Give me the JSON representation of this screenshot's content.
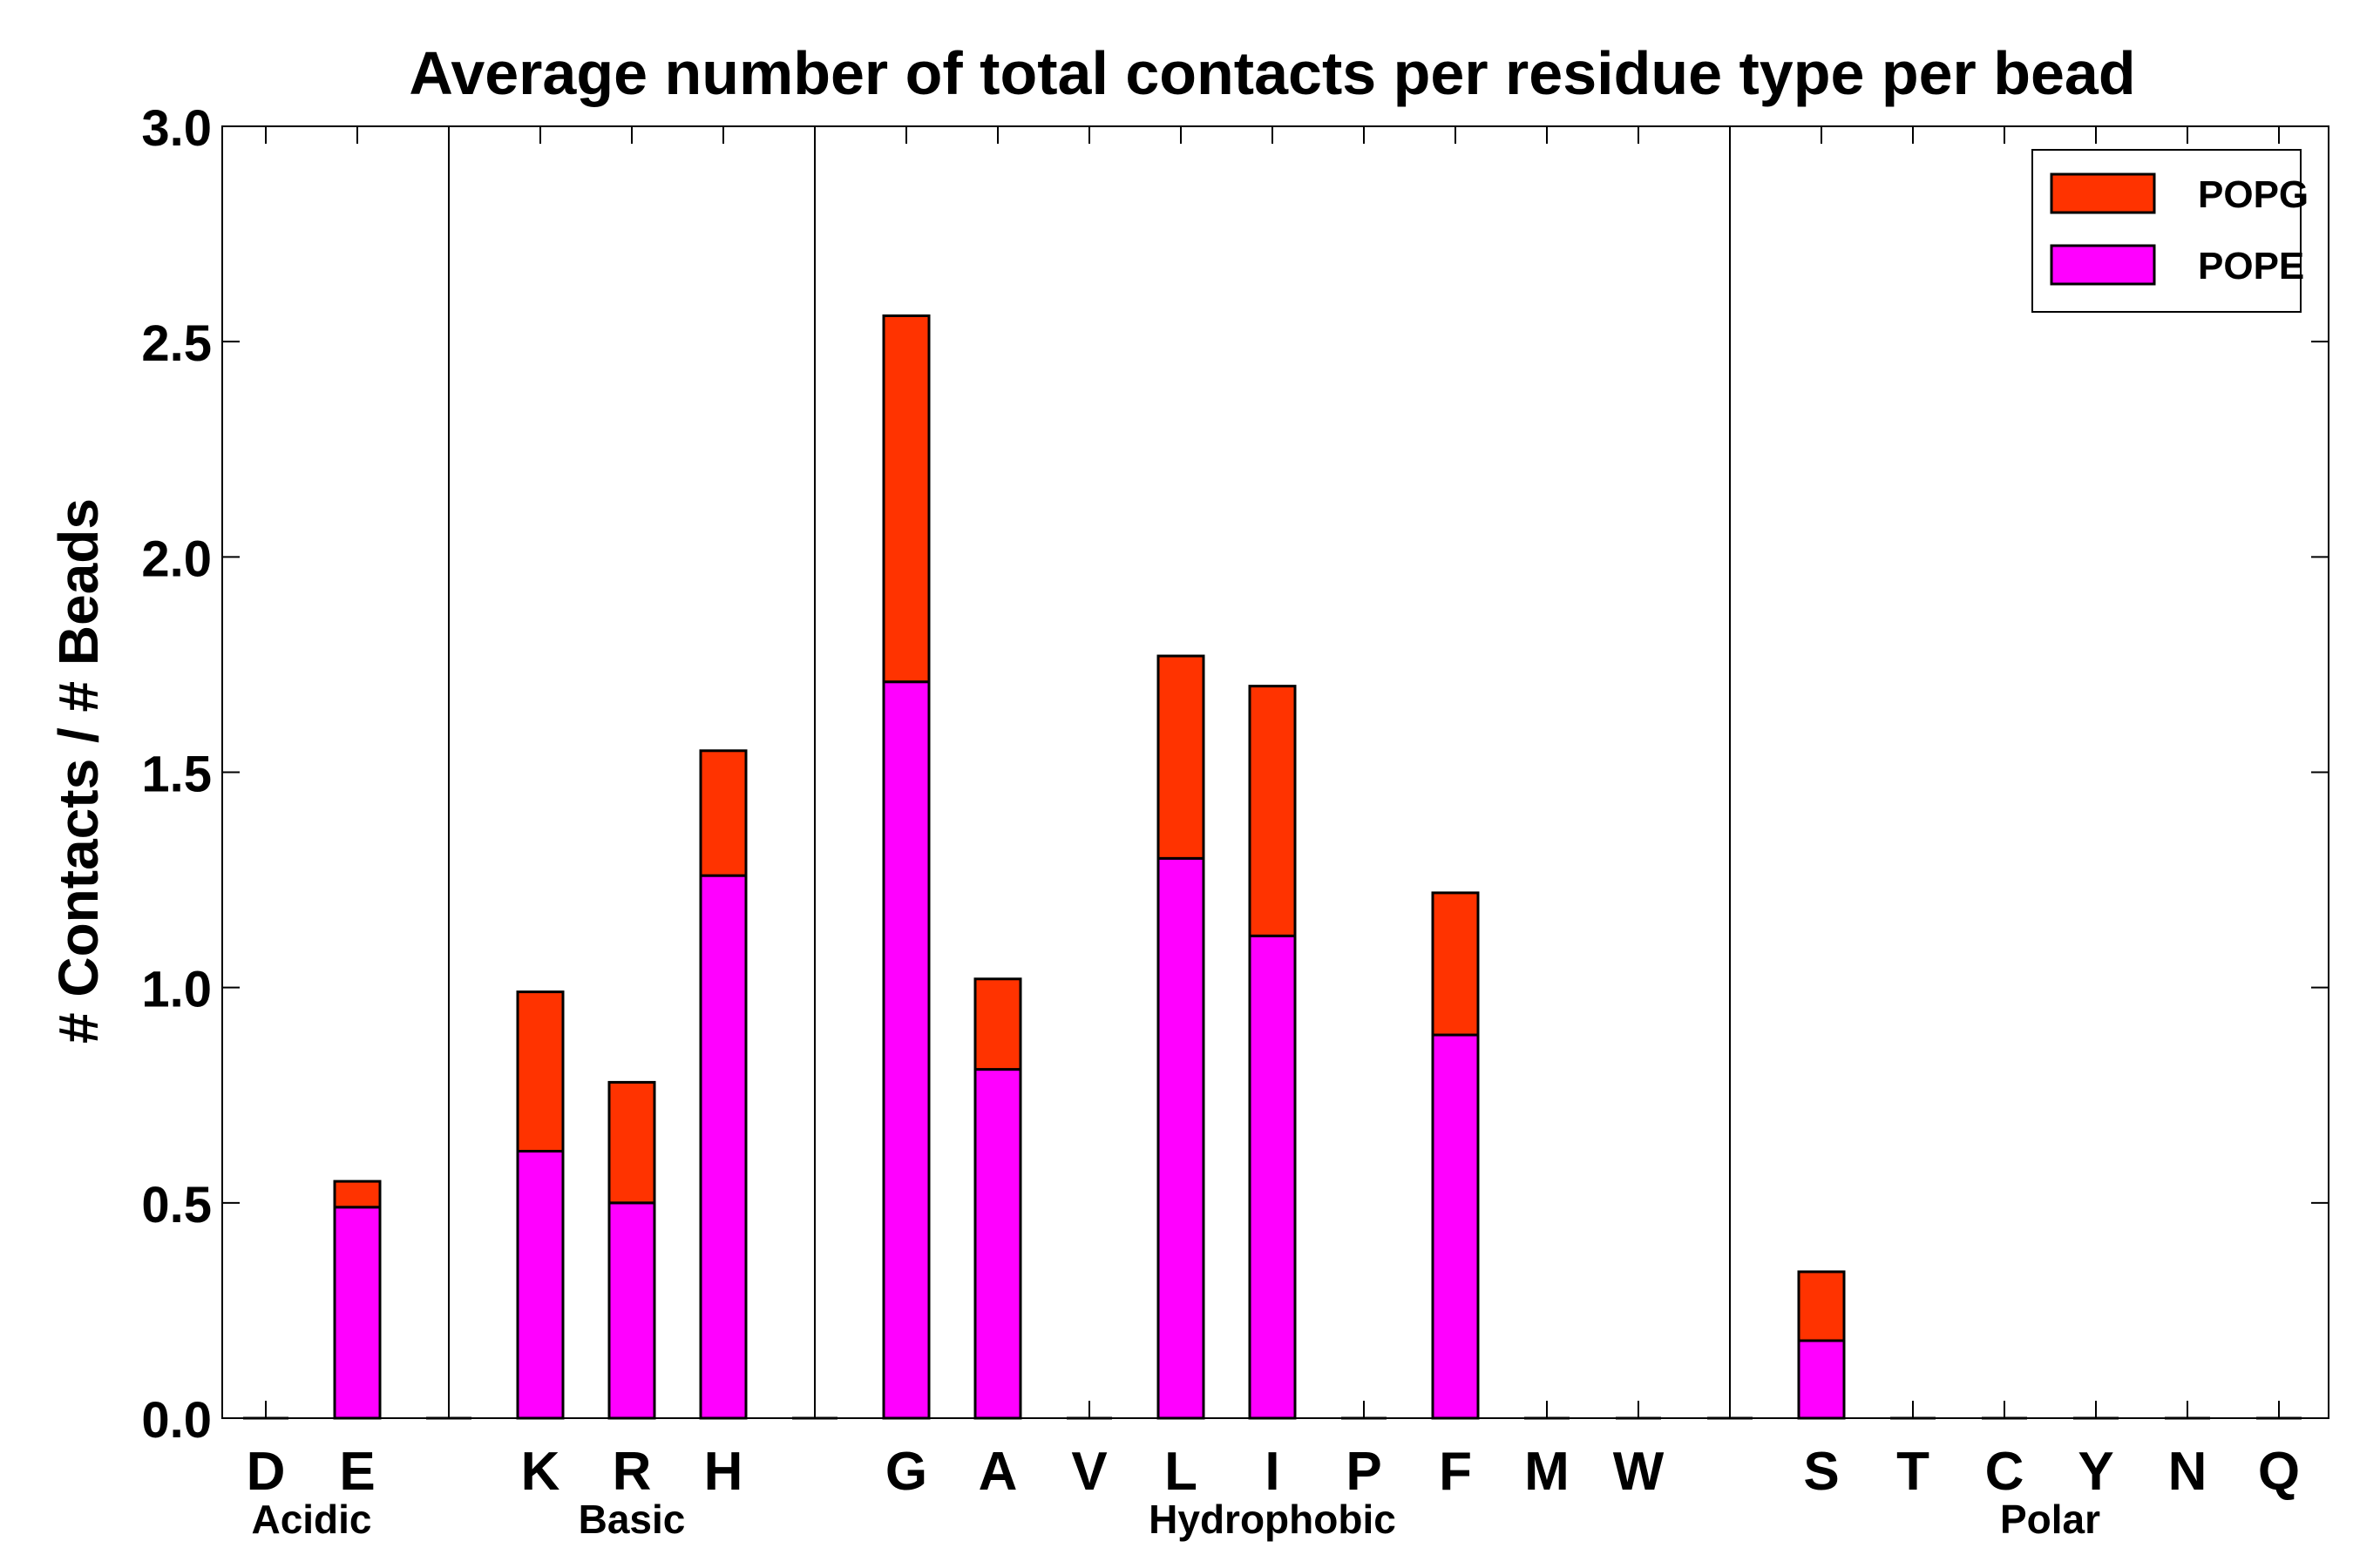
{
  "chart_data": {
    "type": "bar",
    "stacked": true,
    "title": "Average number of total contacts per residue type per bead",
    "xlabel": "",
    "ylabel": "# Contacts / # Beads",
    "ylim": [
      0,
      3.0
    ],
    "yticks": [
      "0.0",
      "0.5",
      "1.0",
      "1.5",
      "2.0",
      "2.5",
      "3.0"
    ],
    "grid": false,
    "legend_position": "top-right",
    "categories": [
      "D",
      "E",
      "",
      "K",
      "R",
      "H",
      "",
      "G",
      "A",
      "V",
      "L",
      "I",
      "P",
      "F",
      "M",
      "W",
      "",
      "S",
      "T",
      "C",
      "Y",
      "N",
      "Q"
    ],
    "series": [
      {
        "name": "POPE",
        "color": "#ff00ff",
        "values": [
          0,
          0.49,
          0,
          0.62,
          0.5,
          1.26,
          0,
          1.71,
          0.81,
          0,
          1.3,
          1.12,
          0,
          0.89,
          0,
          0,
          0,
          0.18,
          0,
          0,
          0,
          0,
          0
        ]
      },
      {
        "name": "POPG",
        "color": "#ff3300",
        "values": [
          0,
          0.06,
          0,
          0.37,
          0.28,
          0.29,
          0,
          0.85,
          0.21,
          0,
          0.47,
          0.58,
          0,
          0.33,
          0,
          0,
          0,
          0.16,
          0,
          0,
          0,
          0,
          0
        ]
      }
    ],
    "groups": [
      {
        "label": "Acidic",
        "center_index": 0.5
      },
      {
        "label": "Basic",
        "center_index": 4.0
      },
      {
        "label": "Hydrophobic",
        "center_index": 11.0
      },
      {
        "label": "Polar",
        "center_index": 19.5
      }
    ],
    "separators_after_index": [
      2,
      6,
      16
    ]
  }
}
